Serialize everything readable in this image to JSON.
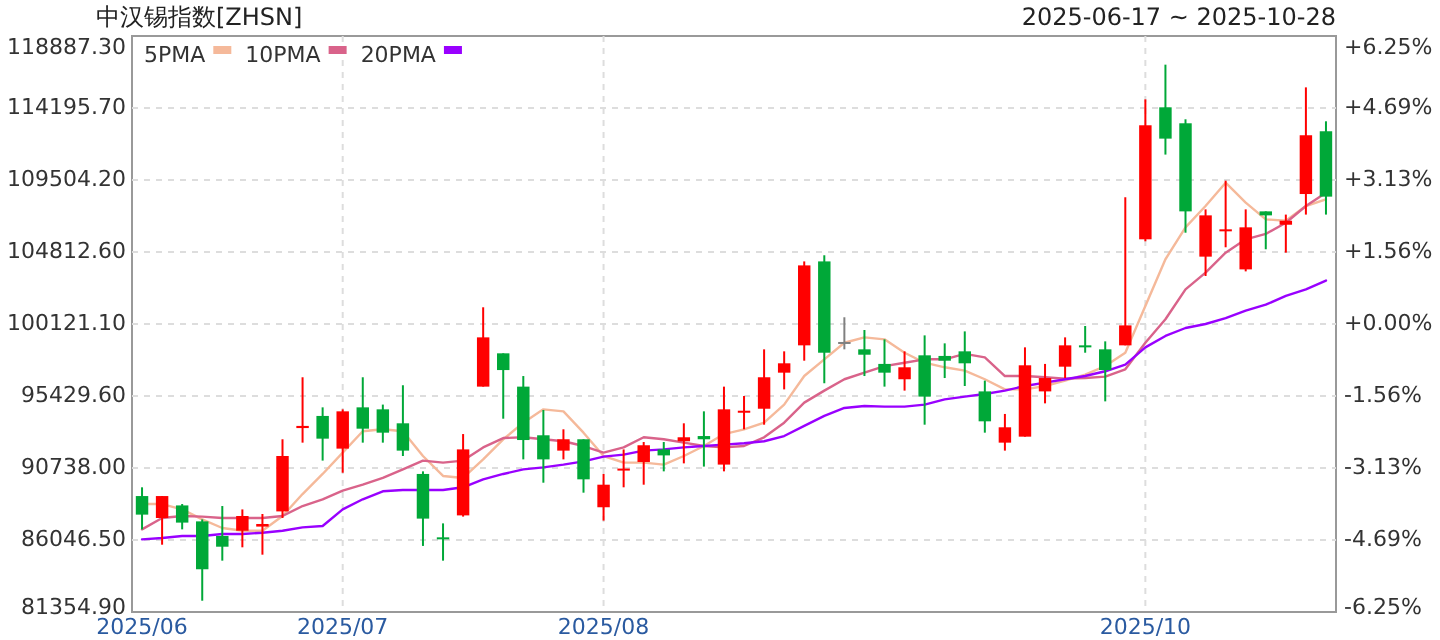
{
  "chart_data": {
    "type": "candlestick",
    "title": "中汉锡指数[ZHSN]",
    "subtitle": "2025-06-17 ~ 2025-10-28",
    "categories": [
      "2025/06",
      null,
      null,
      null,
      null,
      null,
      null,
      null,
      null,
      null,
      "2025/07",
      null,
      null,
      null,
      null,
      null,
      null,
      null,
      null,
      null,
      null,
      null,
      null,
      "2025/08",
      null,
      null,
      null,
      null,
      null,
      null,
      null,
      null,
      null,
      null,
      null,
      null,
      null,
      null,
      null,
      null,
      null,
      null,
      null,
      null,
      null,
      null,
      null,
      null,
      null,
      null,
      "2025/10",
      null,
      null,
      null,
      null,
      null,
      null,
      null,
      null,
      null
    ],
    "ohlc": [
      [
        88910,
        89480,
        86740,
        87700
      ],
      [
        87480,
        88910,
        85740,
        88910
      ],
      [
        88300,
        88390,
        86740,
        87180
      ],
      [
        87260,
        87390,
        82090,
        84140
      ],
      [
        86310,
        88260,
        84700,
        85610
      ],
      [
        86650,
        88040,
        85570,
        87610
      ],
      [
        86920,
        87740,
        85090,
        87090
      ],
      [
        87910,
        92610,
        87480,
        91520
      ],
      [
        93340,
        96650,
        92390,
        93480
      ],
      [
        94130,
        94690,
        91220,
        92650
      ],
      [
        92000,
        94560,
        90430,
        94430
      ],
      [
        94690,
        96650,
        92390,
        93300
      ],
      [
        94560,
        94870,
        92390,
        93040
      ],
      [
        93650,
        96130,
        91520,
        91870
      ],
      [
        90350,
        90520,
        85660,
        87440
      ],
      [
        86220,
        87130,
        84700,
        86130
      ],
      [
        87650,
        92950,
        87570,
        91950
      ],
      [
        96040,
        101210,
        96040,
        99250
      ],
      [
        98210,
        98210,
        93950,
        97120
      ],
      [
        96040,
        96730,
        91300,
        92560
      ],
      [
        92870,
        94520,
        89780,
        91300
      ],
      [
        91870,
        93260,
        91300,
        92610
      ],
      [
        92610,
        92610,
        89130,
        90000
      ],
      [
        88180,
        90350,
        87310,
        89650
      ],
      [
        90610,
        91950,
        89480,
        90700
      ],
      [
        91130,
        92430,
        89650,
        92220
      ],
      [
        91950,
        92430,
        90520,
        91560
      ],
      [
        92480,
        93650,
        91040,
        92740
      ],
      [
        92820,
        94430,
        90830,
        92610
      ],
      [
        90960,
        96040,
        90520,
        94560
      ],
      [
        94340,
        95430,
        93260,
        94470
      ],
      [
        94600,
        98470,
        93560,
        96650
      ],
      [
        96950,
        98340,
        95860,
        97560
      ],
      [
        98730,
        104200,
        97730,
        103940
      ],
      [
        104200,
        104600,
        96260,
        98250
      ],
      [
        98950,
        100560,
        98470,
        98950
      ],
      [
        98470,
        99730,
        96730,
        98120
      ],
      [
        97520,
        99120,
        96040,
        96950
      ],
      [
        96520,
        98340,
        95780,
        97300
      ],
      [
        98080,
        99380,
        93560,
        95390
      ],
      [
        98040,
        98860,
        96600,
        97730
      ],
      [
        98340,
        99640,
        96080,
        97560
      ],
      [
        95730,
        96430,
        93040,
        93780
      ],
      [
        92390,
        94260,
        91870,
        93390
      ],
      [
        92780,
        98600,
        92780,
        97430
      ],
      [
        95730,
        97520,
        94950,
        96600
      ],
      [
        97340,
        99250,
        96600,
        98730
      ],
      [
        98730,
        99990,
        98250,
        98640
      ],
      [
        98470,
        98990,
        95080,
        97120
      ],
      [
        98730,
        108380,
        98730,
        100030
      ],
      [
        105640,
        114760,
        105510,
        113070
      ],
      [
        114240,
        117020,
        111160,
        112200
      ],
      [
        113200,
        113460,
        106070,
        107460
      ],
      [
        104510,
        107590,
        103250,
        107200
      ],
      [
        106200,
        109460,
        105120,
        106290
      ],
      [
        103680,
        107590,
        103550,
        106420
      ],
      [
        107460,
        107460,
        104990,
        107200
      ],
      [
        106590,
        107250,
        104770,
        106850
      ],
      [
        108590,
        115540,
        107250,
        112420
      ],
      [
        112680,
        113330,
        107250,
        108420
      ]
    ],
    "colors": [
      "#00a838",
      "#ff0000",
      "#00a838",
      "#00a838",
      "#00a838",
      "#ff0000",
      "#ff0000",
      "#ff0000",
      "#ff0000",
      "#00a838",
      "#ff0000",
      "#00a838",
      "#00a838",
      "#00a838",
      "#00a838",
      "#00a838",
      "#ff0000",
      "#ff0000",
      "#00a838",
      "#00a838",
      "#00a838",
      "#ff0000",
      "#00a838",
      "#ff0000",
      "#ff0000",
      "#ff0000",
      "#00a838",
      "#ff0000",
      "#00a838",
      "#ff0000",
      "#ff0000",
      "#ff0000",
      "#ff0000",
      "#ff0000",
      "#00a838",
      "#808080",
      "#00a838",
      "#00a838",
      "#ff0000",
      "#00a838",
      "#00a838",
      "#00a838",
      "#00a838",
      "#ff0000",
      "#ff0000",
      "#ff0000",
      "#ff0000",
      "#00a838",
      "#00a838",
      "#ff0000",
      "#ff0000",
      "#00a838",
      "#00a838",
      "#ff0000",
      "#ff0000",
      "#ff0000",
      "#00a838",
      "#ff0000",
      "#ff0000",
      "#00a838"
    ],
    "series": [
      {
        "name": "5PMA",
        "type": "line",
        "color": "#f5b99a",
        "values": [
          88390,
          88390,
          88040,
          87390,
          86830,
          86650,
          86650,
          87610,
          89040,
          90350,
          91740,
          93130,
          93260,
          93130,
          91520,
          90220,
          90090,
          91300,
          92610,
          93690,
          94560,
          94430,
          93040,
          91520,
          91090,
          91090,
          90960,
          91520,
          92170,
          92950,
          93260,
          93690,
          94870,
          96730,
          97820,
          98900,
          99250,
          99120,
          98250,
          97600,
          97300,
          97080,
          96520,
          95860,
          95860,
          96080,
          96430,
          96820,
          97380,
          98250,
          101290,
          104340,
          106420,
          107810,
          109330,
          108030,
          106940,
          106850,
          107810,
          108240
        ]
      },
      {
        "name": "10PMA",
        "type": "line",
        "color": "#d9638a",
        "values": [
          86740,
          87480,
          87610,
          87570,
          87480,
          87480,
          87480,
          87610,
          88260,
          88700,
          89260,
          89650,
          90090,
          90650,
          91220,
          91090,
          91220,
          92080,
          92690,
          92740,
          92610,
          92480,
          92170,
          91740,
          92080,
          92740,
          92610,
          92390,
          92170,
          92080,
          92170,
          92740,
          93690,
          95000,
          95780,
          96520,
          96950,
          97380,
          97600,
          97820,
          97820,
          98170,
          97950,
          96730,
          96730,
          96650,
          96560,
          96600,
          96690,
          97170,
          98900,
          100430,
          102380,
          103470,
          104770,
          105640,
          105990,
          106720,
          107810,
          108680
        ]
      },
      {
        "name": "20PMA",
        "type": "line",
        "color": "#9900ff",
        "values": [
          86090,
          86180,
          86310,
          86310,
          86440,
          86440,
          86520,
          86650,
          86870,
          86960,
          88040,
          88700,
          89220,
          89300,
          89300,
          89300,
          89480,
          90000,
          90350,
          90650,
          90780,
          90960,
          91170,
          91480,
          91610,
          91870,
          91950,
          92080,
          92170,
          92260,
          92350,
          92480,
          92820,
          93480,
          94130,
          94650,
          94780,
          94740,
          94740,
          94870,
          95210,
          95390,
          95560,
          95780,
          96080,
          96300,
          96520,
          96730,
          97040,
          97470,
          98600,
          99340,
          99860,
          100120,
          100510,
          100990,
          101380,
          101950,
          102380,
          102950
        ]
      }
    ],
    "ylim": [
      81354.9,
      118887.3
    ],
    "yticks": [
      {
        "value": 81354.9,
        "label": "81354.90"
      },
      {
        "value": 86046.5,
        "label": "86046.50"
      },
      {
        "value": 90738,
        "label": "90738.00"
      },
      {
        "value": 95429.6,
        "label": "95429.60"
      },
      {
        "value": 100121.1,
        "label": "100121.10"
      },
      {
        "value": 104812.6,
        "label": "104812.60"
      },
      {
        "value": 109504.2,
        "label": "109504.20"
      },
      {
        "value": 114195.7,
        "label": "114195.70"
      },
      {
        "value": 118887.3,
        "label": "118887.30"
      }
    ],
    "y2lim": [
      -6.25,
      6.25
    ],
    "y2ticks": [
      {
        "value": -6.25,
        "label": "-6.25%"
      },
      {
        "value": -4.69,
        "label": "-4.69%"
      },
      {
        "value": -3.13,
        "label": "-3.13%"
      },
      {
        "value": -1.56,
        "label": "-1.56%"
      },
      {
        "value": 0,
        "label": "+0.00%"
      },
      {
        "value": 1.56,
        "label": "+1.56%"
      },
      {
        "value": 3.13,
        "label": "+3.13%"
      },
      {
        "value": 4.69,
        "label": "+4.69%"
      },
      {
        "value": 6.25,
        "label": "+6.25%"
      }
    ],
    "grid": true,
    "legend": "top left"
  }
}
